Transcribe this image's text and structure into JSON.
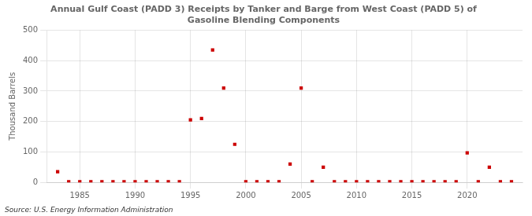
{
  "chart_data": {
    "type": "scatter",
    "title": "Annual Gulf Coast (PADD 3) Receipts by Tanker and Barge from West Coast (PADD 5) of\nGasoline Blending Components",
    "ylabel": "Thousand Barrels",
    "annotations": [
      "Source: U.S. Energy Information Administration"
    ],
    "x": [
      1983,
      1984,
      1985,
      1986,
      1987,
      1988,
      1989,
      1990,
      1991,
      1992,
      1993,
      1994,
      1995,
      1996,
      1997,
      1998,
      1999,
      2000,
      2001,
      2002,
      2003,
      2004,
      2005,
      2006,
      2007,
      2008,
      2009,
      2010,
      2011,
      2012,
      2013,
      2014,
      2015,
      2016,
      2017,
      2018,
      2019,
      2020,
      2021,
      2022,
      2023,
      2024
    ],
    "values": [
      35,
      2,
      2,
      2,
      2,
      2,
      2,
      2,
      2,
      2,
      2,
      2,
      205,
      210,
      435,
      310,
      125,
      2,
      2,
      2,
      2,
      60,
      310,
      2,
      50,
      2,
      2,
      2,
      2,
      2,
      2,
      2,
      2,
      2,
      2,
      2,
      2,
      97,
      2,
      50,
      2,
      2
    ],
    "color": "#cc0000",
    "marker": "square",
    "xlim": [
      1982,
      2025
    ],
    "ylim": [
      0,
      500
    ],
    "xticks": [
      1985,
      1990,
      1995,
      2000,
      2005,
      2010,
      2015,
      2020
    ],
    "yticks": [
      0,
      100,
      200,
      300,
      400,
      500
    ],
    "grid": true
  }
}
